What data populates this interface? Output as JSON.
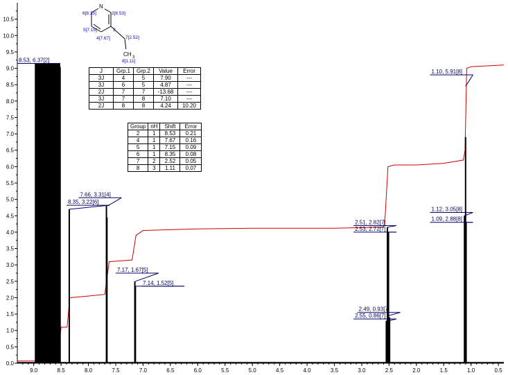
{
  "chart_data": {
    "type": "line",
    "x_axis": {
      "reversed": true,
      "range": [
        9.3,
        0.4
      ],
      "ticks": [
        "9.0",
        "8.5",
        "8.0",
        "7.5",
        "7.0",
        "6.5",
        "6.0",
        "5.5",
        "5.0",
        "4.5",
        "4.0",
        "3.5",
        "3.0",
        "2.5",
        "2.0",
        "1.5",
        "1.0",
        "0.5"
      ]
    },
    "y_axis": {
      "range": [
        0,
        11.0
      ],
      "ticks": [
        "0.0",
        "0.5",
        "1.0",
        "1.5",
        "2.0",
        "2.5",
        "3.0",
        "3.5",
        "4.0",
        "4.5",
        "5.0",
        "5.5",
        "6.0",
        "6.5",
        "7.0",
        "7.5",
        "8.0",
        "8.5",
        "9.0",
        "9.5",
        "10.0",
        "10.5"
      ]
    },
    "spectrum_color": "#000000",
    "integral_color": "#cc0000",
    "peak_groups": [
      {
        "x": [
          8.53,
          8.53
        ],
        "y": [
          9.15,
          9.15
        ],
        "fill": true,
        "left": 8.98
      },
      {
        "x": [
          8.35
        ],
        "y": [
          4.7
        ],
        "fill": false
      },
      {
        "x": [
          7.66,
          7.67
        ],
        "y": [
          4.45,
          4.8
        ],
        "fill": false
      },
      {
        "x": [
          7.14,
          7.15
        ],
        "y": [
          2.35,
          2.5
        ],
        "fill": false
      },
      {
        "x": [
          2.49,
          2.51,
          2.53,
          2.55
        ],
        "y": [
          1.4,
          4.0,
          4.15,
          1.3
        ],
        "fill": false
      },
      {
        "x": [
          1.09,
          1.1,
          1.12
        ],
        "y": [
          4.3,
          6.9,
          4.5
        ],
        "fill": false
      }
    ],
    "integral_curve": [
      [
        9.3,
        0.07
      ],
      [
        8.56,
        0.07
      ],
      [
        8.5,
        1.1
      ],
      [
        8.39,
        1.1
      ],
      [
        8.34,
        2.0
      ],
      [
        8.0,
        2.05
      ],
      [
        7.7,
        2.1
      ],
      [
        7.62,
        3.1
      ],
      [
        7.2,
        3.15
      ],
      [
        7.13,
        3.9
      ],
      [
        7.0,
        4.05
      ],
      [
        6.0,
        4.1
      ],
      [
        5.0,
        4.12
      ],
      [
        3.5,
        4.12
      ],
      [
        2.6,
        4.15
      ],
      [
        2.57,
        4.5
      ],
      [
        2.52,
        6.0
      ],
      [
        2.4,
        6.05
      ],
      [
        2.0,
        6.05
      ],
      [
        1.5,
        6.1
      ],
      [
        1.14,
        6.2
      ],
      [
        1.11,
        6.5
      ],
      [
        1.08,
        9.0
      ],
      [
        1.0,
        9.05
      ],
      [
        0.4,
        9.1
      ]
    ],
    "labels": [
      {
        "text": "8.53, 6.37[2]",
        "x": 8.53,
        "y": 9.15,
        "label_x": 9.3,
        "label_y": 9.15
      },
      {
        "text": "7.66, 3.31[4]",
        "x": 7.65,
        "y": 4.8,
        "label_x": 8.18,
        "label_y": 5.05
      },
      {
        "text": "8.35, 3.22[6]",
        "x": 8.35,
        "y": 4.7,
        "label_x": 8.4,
        "label_y": 4.82
      },
      {
        "text": "7.17, 1.67[5]",
        "x": 7.14,
        "y": 2.5,
        "label_x": 7.5,
        "label_y": 2.75
      },
      {
        "text": "7.14, 1.52[5]",
        "x": 7.15,
        "y": 2.35,
        "label_x": 7.03,
        "label_y": 2.35
      },
      {
        "text": "2.51, 2.82[7]",
        "x": 2.53,
        "y": 4.15,
        "label_x": 3.15,
        "label_y": 4.2
      },
      {
        "text": "2.53, 2.72[7]",
        "x": 2.51,
        "y": 4.0,
        "label_x": 3.15,
        "label_y": 4.0
      },
      {
        "text": "2.49, 0.93[7]",
        "x": 2.51,
        "y": 1.45,
        "label_x": 3.08,
        "label_y": 1.55
      },
      {
        "text": "2.55, 0.86[7]",
        "x": 2.49,
        "y": 1.3,
        "label_x": 3.15,
        "label_y": 1.35
      },
      {
        "text": "1.10, 5.91[8]",
        "x": 1.1,
        "y": 8.45,
        "label_x": 1.75,
        "label_y": 8.8
      },
      {
        "text": "1.12, 3.05[8]",
        "x": 1.12,
        "y": 4.5,
        "label_x": 1.75,
        "label_y": 4.6
      },
      {
        "text": "1.09, 2.88[8]",
        "x": 1.1,
        "y": 4.3,
        "label_x": 1.75,
        "label_y": 4.3
      }
    ],
    "structure": {
      "color": "#0000cc",
      "atom_n": "N",
      "ch3": "CH",
      "ch3_sub": "3",
      "shift_labels": [
        "6[8.35]",
        "2[8.53]",
        "5[7.15]",
        "3",
        "4[7.67]",
        "7[2.52]",
        "8[1.11]"
      ]
    }
  },
  "coupling_table": {
    "headers": [
      "J",
      "Grp.1",
      "Grp.2",
      "Value",
      "Error"
    ],
    "rows": [
      [
        "3J",
        "4",
        "5",
        "7.90",
        "---"
      ],
      [
        "3J",
        "6",
        "5",
        "4.87",
        "---"
      ],
      [
        "2J",
        "7",
        "7",
        "-13.68",
        "---"
      ],
      [
        "3J",
        "7",
        "8",
        "7.10",
        "---"
      ],
      [
        "2J",
        "8",
        "8",
        "4.24",
        "10.20"
      ]
    ]
  },
  "shift_table": {
    "headers": [
      "Group",
      "nH",
      "Shift",
      "Error"
    ],
    "rows": [
      [
        "2",
        "1",
        "8.53",
        "0.21"
      ],
      [
        "4",
        "1",
        "7.67",
        "0.16"
      ],
      [
        "5",
        "1",
        "7.15",
        "0.09"
      ],
      [
        "6",
        "1",
        "8.35",
        "0.08"
      ],
      [
        "7",
        "2",
        "2.52",
        "0.05"
      ],
      [
        "8",
        "3",
        "1.11",
        "0.07"
      ]
    ]
  }
}
